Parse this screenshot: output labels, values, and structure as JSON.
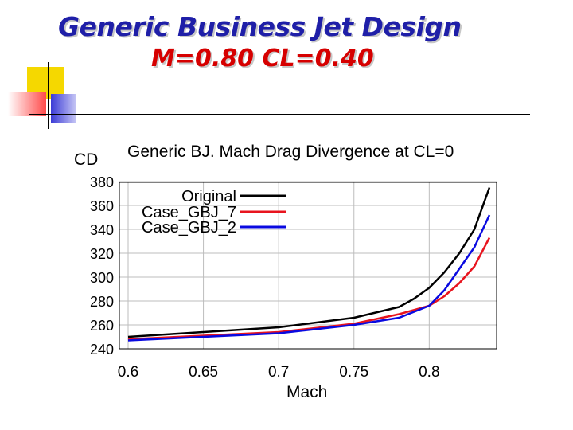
{
  "slide": {
    "title_line1": "Generic Business Jet Design",
    "title_line2": "M=0.80  CL=0.40"
  },
  "colors": {
    "title_blue": "#1f1fa8",
    "title_red": "#d60000",
    "deco_yellow": "#f5d800",
    "deco_red": "#ff4a4a",
    "deco_blue": "#3b3bd6"
  },
  "chart_data": {
    "type": "line",
    "title": "Generic BJ. Mach Drag Divergence at CL=0",
    "xlabel": "Mach",
    "ylabel": "CD",
    "xlim": [
      0.6,
      0.84
    ],
    "ylim": [
      240,
      380
    ],
    "xticks": [
      "0.6",
      "0.65",
      "0.7",
      "0.75",
      "0.8"
    ],
    "yticks": [
      "240",
      "260",
      "280",
      "300",
      "320",
      "340",
      "360",
      "380"
    ],
    "grid": true,
    "legend_position": "top-left",
    "series": [
      {
        "name": "Original",
        "color": "#000000",
        "x": [
          0.6,
          0.65,
          0.7,
          0.75,
          0.78,
          0.79,
          0.8,
          0.81,
          0.82,
          0.83,
          0.84
        ],
        "y": [
          250,
          254,
          258,
          266,
          275,
          282,
          291,
          304,
          320,
          340,
          375
        ]
      },
      {
        "name": "Case_GBJ_7",
        "color": "#e8141e",
        "x": [
          0.6,
          0.65,
          0.7,
          0.75,
          0.78,
          0.8,
          0.81,
          0.82,
          0.83,
          0.84
        ],
        "y": [
          248,
          251,
          254,
          261,
          269,
          276,
          284,
          295,
          309,
          333
        ]
      },
      {
        "name": "Case_GBJ_2",
        "color": "#0a0ae0",
        "x": [
          0.6,
          0.65,
          0.7,
          0.75,
          0.78,
          0.8,
          0.81,
          0.82,
          0.83,
          0.84
        ],
        "y": [
          247,
          250,
          253,
          260,
          266,
          276,
          289,
          307,
          325,
          352
        ]
      }
    ]
  }
}
